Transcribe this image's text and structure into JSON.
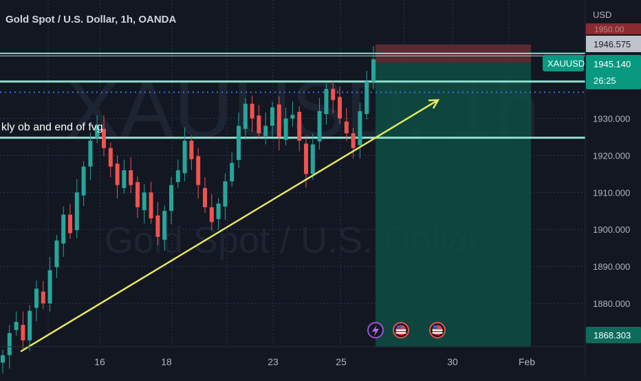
{
  "header": {
    "title": "Gold Spot / U.S. Dollar, 1h, OANDA",
    "watermark_symbol": "XAUUSD, 1h",
    "watermark_name": "Gold Spot / U.S. Dollar"
  },
  "price_axis": {
    "currency_label": "USD",
    "badges": {
      "top_cut": "1950.00",
      "stop_price": "1946.575",
      "last_price": "1945.140",
      "countdown": "26:25",
      "symbol": "XAUUSD",
      "bottom_price": "1868.303"
    }
  },
  "annotation": {
    "text": "kly ob and end of fvg"
  },
  "colors": {
    "background": "#131722",
    "grid": "#2a3a5a",
    "bull": "#26a69a",
    "bear": "#ef5350",
    "trendline": "#e8e85a",
    "level": "#8fe0cf",
    "dotted": "#4a6cf0",
    "target_zone": "#0e4d43",
    "stop_zone": "#5a2a31",
    "badge": "#089981",
    "bottom_badge": "#0e6b5c"
  },
  "chart_data": {
    "type": "candlestick",
    "title": "Gold Spot / U.S. Dollar, 1h, OANDA",
    "y_axis": {
      "ticks": [
        1880,
        1890,
        1900,
        1910,
        1920,
        1930
      ],
      "tick_labels": [
        "1880.000",
        "1890.000",
        "1900.000",
        "1910.000",
        "1920.000",
        "1930.000"
      ],
      "ylim": [
        1866,
        1957
      ]
    },
    "x_axis": {
      "ticks": [
        "16",
        "18",
        "23",
        "25",
        "30",
        "Feb"
      ]
    },
    "series": [
      {
        "close": [
          1866,
          1872,
          1875,
          1870,
          1878,
          1884,
          1880,
          1889,
          1897,
          1904,
          1899,
          1910,
          1917,
          1924,
          1928,
          1922,
          1917,
          1912,
          1916,
          1912,
          1906,
          1910,
          1903,
          1898,
          1905,
          1912,
          1916,
          1924,
          1919,
          1912,
          1906,
          1902,
          1907,
          1913,
          1918,
          1928,
          1934,
          1930,
          1926,
          1928,
          1933,
          1925,
          1930,
          1931,
          1924,
          1915,
          1923,
          1932,
          1938,
          1935,
          1930,
          1926,
          1922,
          1932,
          1940,
          1946
        ]
      }
    ],
    "horizontal_levels": [
      1947.6,
      1946.9,
      1940.0,
      1937.1,
      1924.8
    ],
    "trendline": {
      "from": [
        "Jan 11",
        1867
      ],
      "to": [
        "Jan 30",
        1935
      ],
      "arrow": true
    },
    "position": {
      "type": "long",
      "entry": 1945.14,
      "target": 1868.303,
      "stop": 1950.0
    }
  }
}
